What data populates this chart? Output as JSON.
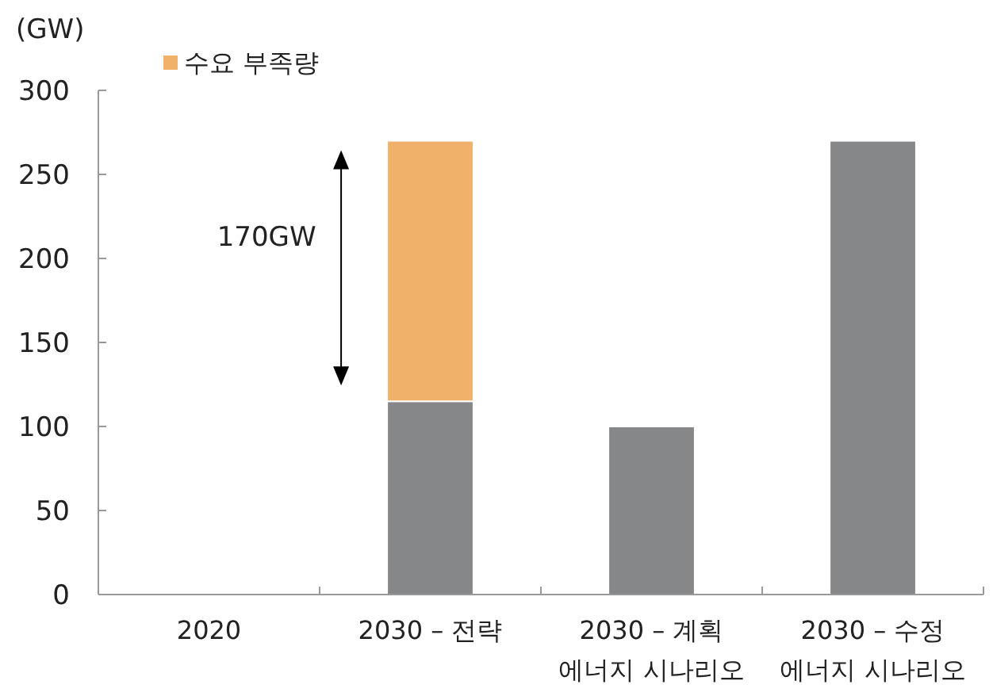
{
  "chart_data": {
    "type": "bar",
    "stacked": true,
    "ylabel": "(GW)",
    "categories": [
      "2020",
      "2030 – 전략",
      "2030 – 계획\n에너지 시나리오",
      "2030 – 수정\n에너지 시나리오"
    ],
    "series": [
      {
        "color": "#858789",
        "values": [
          null,
          115,
          100,
          270
        ]
      },
      {
        "name": "수요 부족량",
        "color": "#f0b26b",
        "values": [
          null,
          155,
          null,
          null
        ]
      }
    ],
    "ylim": [
      0,
      300
    ],
    "yticks": [
      0,
      50,
      100,
      150,
      200,
      250,
      300
    ],
    "grid": false,
    "legend": "top left",
    "annotations": [
      "170GW"
    ]
  }
}
